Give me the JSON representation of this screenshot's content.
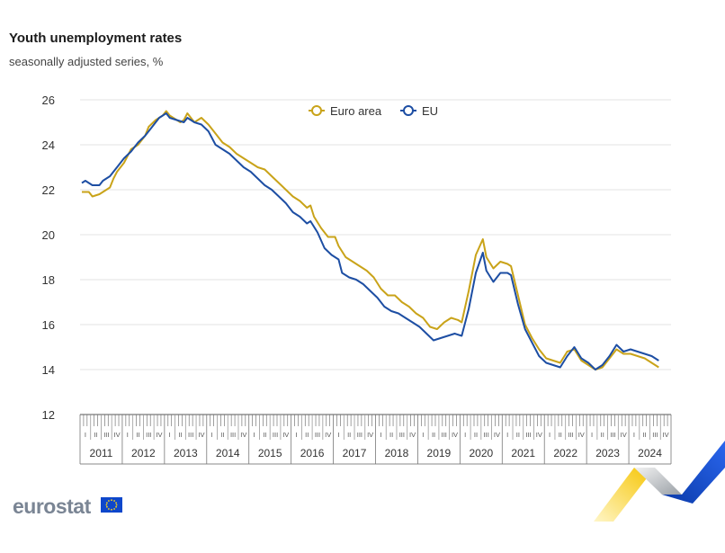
{
  "header": {
    "title": "Youth unemployment rates",
    "subtitle": "seasonally adjusted series, %"
  },
  "footer": {
    "logo_text": "eurostat"
  },
  "chart_data": {
    "type": "line",
    "ylim": [
      12,
      26
    ],
    "yticks": [
      12,
      14,
      16,
      18,
      20,
      22,
      24,
      26
    ],
    "grid": true,
    "legend_placement": "top-center",
    "quarter_labels": [
      "I",
      "II",
      "III",
      "IV"
    ],
    "years": [
      "2011",
      "2012",
      "2013",
      "2014",
      "2015",
      "2016",
      "2017",
      "2018",
      "2019",
      "2020",
      "2021",
      "2022",
      "2023",
      "2024"
    ],
    "x_start": "2011-01",
    "x_end": "2024-10",
    "series": [
      {
        "name": "Euro area",
        "color": "#c9a319",
        "points": [
          [
            "2011-01",
            21.9
          ],
          [
            "2011-03",
            21.9
          ],
          [
            "2011-04",
            21.7
          ],
          [
            "2011-06",
            21.8
          ],
          [
            "2011-07",
            21.9
          ],
          [
            "2011-09",
            22.1
          ],
          [
            "2011-10",
            22.5
          ],
          [
            "2011-11",
            22.8
          ],
          [
            "2012-01",
            23.2
          ],
          [
            "2012-03",
            23.8
          ],
          [
            "2012-05",
            24.0
          ],
          [
            "2012-07",
            24.4
          ],
          [
            "2012-08",
            24.8
          ],
          [
            "2012-10",
            25.1
          ],
          [
            "2012-12",
            25.3
          ],
          [
            "2013-01",
            25.5
          ],
          [
            "2013-02",
            25.3
          ],
          [
            "2013-03",
            25.2
          ],
          [
            "2013-05",
            25.0
          ],
          [
            "2013-06",
            25.1
          ],
          [
            "2013-07",
            25.4
          ],
          [
            "2013-09",
            25.0
          ],
          [
            "2013-11",
            25.2
          ],
          [
            "2014-01",
            24.9
          ],
          [
            "2014-03",
            24.5
          ],
          [
            "2014-05",
            24.1
          ],
          [
            "2014-07",
            23.9
          ],
          [
            "2014-09",
            23.6
          ],
          [
            "2014-11",
            23.4
          ],
          [
            "2015-01",
            23.2
          ],
          [
            "2015-03",
            23.0
          ],
          [
            "2015-05",
            22.9
          ],
          [
            "2015-07",
            22.6
          ],
          [
            "2015-09",
            22.3
          ],
          [
            "2015-11",
            22.0
          ],
          [
            "2016-01",
            21.7
          ],
          [
            "2016-03",
            21.5
          ],
          [
            "2016-05",
            21.2
          ],
          [
            "2016-06",
            21.3
          ],
          [
            "2016-07",
            20.8
          ],
          [
            "2016-09",
            20.3
          ],
          [
            "2016-11",
            19.9
          ],
          [
            "2017-01",
            19.9
          ],
          [
            "2017-02",
            19.5
          ],
          [
            "2017-04",
            19.0
          ],
          [
            "2017-06",
            18.8
          ],
          [
            "2017-08",
            18.6
          ],
          [
            "2017-10",
            18.4
          ],
          [
            "2017-12",
            18.1
          ],
          [
            "2018-02",
            17.6
          ],
          [
            "2018-04",
            17.3
          ],
          [
            "2018-06",
            17.3
          ],
          [
            "2018-08",
            17.0
          ],
          [
            "2018-10",
            16.8
          ],
          [
            "2018-12",
            16.5
          ],
          [
            "2019-02",
            16.3
          ],
          [
            "2019-04",
            15.9
          ],
          [
            "2019-06",
            15.8
          ],
          [
            "2019-08",
            16.1
          ],
          [
            "2019-10",
            16.3
          ],
          [
            "2019-12",
            16.2
          ],
          [
            "2020-01",
            16.1
          ],
          [
            "2020-03",
            17.5
          ],
          [
            "2020-05",
            19.1
          ],
          [
            "2020-07",
            19.8
          ],
          [
            "2020-08",
            19.0
          ],
          [
            "2020-10",
            18.5
          ],
          [
            "2020-12",
            18.8
          ],
          [
            "2021-02",
            18.7
          ],
          [
            "2021-03",
            18.6
          ],
          [
            "2021-05",
            17.3
          ],
          [
            "2021-07",
            16.0
          ],
          [
            "2021-09",
            15.4
          ],
          [
            "2021-11",
            14.9
          ],
          [
            "2022-01",
            14.5
          ],
          [
            "2022-03",
            14.4
          ],
          [
            "2022-05",
            14.3
          ],
          [
            "2022-07",
            14.8
          ],
          [
            "2022-09",
            14.9
          ],
          [
            "2022-11",
            14.4
          ],
          [
            "2023-01",
            14.2
          ],
          [
            "2023-03",
            14.0
          ],
          [
            "2023-05",
            14.1
          ],
          [
            "2023-07",
            14.5
          ],
          [
            "2023-09",
            14.9
          ],
          [
            "2023-11",
            14.7
          ],
          [
            "2024-01",
            14.7
          ],
          [
            "2024-03",
            14.6
          ],
          [
            "2024-05",
            14.5
          ],
          [
            "2024-07",
            14.3
          ],
          [
            "2024-09",
            14.1
          ]
        ]
      },
      {
        "name": "EU",
        "color": "#1d4ea3",
        "points": [
          [
            "2011-01",
            22.3
          ],
          [
            "2011-02",
            22.4
          ],
          [
            "2011-04",
            22.2
          ],
          [
            "2011-06",
            22.2
          ],
          [
            "2011-07",
            22.4
          ],
          [
            "2011-09",
            22.6
          ],
          [
            "2011-11",
            23.0
          ],
          [
            "2012-01",
            23.4
          ],
          [
            "2012-03",
            23.7
          ],
          [
            "2012-05",
            24.1
          ],
          [
            "2012-07",
            24.4
          ],
          [
            "2012-09",
            24.8
          ],
          [
            "2012-11",
            25.2
          ],
          [
            "2013-01",
            25.4
          ],
          [
            "2013-02",
            25.2
          ],
          [
            "2013-04",
            25.1
          ],
          [
            "2013-06",
            25.0
          ],
          [
            "2013-07",
            25.2
          ],
          [
            "2013-09",
            25.0
          ],
          [
            "2013-11",
            24.9
          ],
          [
            "2014-01",
            24.6
          ],
          [
            "2014-03",
            24.0
          ],
          [
            "2014-05",
            23.8
          ],
          [
            "2014-07",
            23.6
          ],
          [
            "2014-09",
            23.3
          ],
          [
            "2014-11",
            23.0
          ],
          [
            "2015-01",
            22.8
          ],
          [
            "2015-03",
            22.5
          ],
          [
            "2015-05",
            22.2
          ],
          [
            "2015-07",
            22.0
          ],
          [
            "2015-09",
            21.7
          ],
          [
            "2015-11",
            21.4
          ],
          [
            "2016-01",
            21.0
          ],
          [
            "2016-03",
            20.8
          ],
          [
            "2016-05",
            20.5
          ],
          [
            "2016-06",
            20.6
          ],
          [
            "2016-08",
            20.1
          ],
          [
            "2016-10",
            19.4
          ],
          [
            "2016-12",
            19.1
          ],
          [
            "2017-02",
            18.9
          ],
          [
            "2017-03",
            18.3
          ],
          [
            "2017-05",
            18.1
          ],
          [
            "2017-07",
            18.0
          ],
          [
            "2017-09",
            17.8
          ],
          [
            "2017-11",
            17.5
          ],
          [
            "2018-01",
            17.2
          ],
          [
            "2018-03",
            16.8
          ],
          [
            "2018-05",
            16.6
          ],
          [
            "2018-07",
            16.5
          ],
          [
            "2018-09",
            16.3
          ],
          [
            "2018-11",
            16.1
          ],
          [
            "2019-01",
            15.9
          ],
          [
            "2019-03",
            15.6
          ],
          [
            "2019-05",
            15.3
          ],
          [
            "2019-07",
            15.4
          ],
          [
            "2019-09",
            15.5
          ],
          [
            "2019-11",
            15.6
          ],
          [
            "2020-01",
            15.5
          ],
          [
            "2020-03",
            16.7
          ],
          [
            "2020-05",
            18.3
          ],
          [
            "2020-07",
            19.2
          ],
          [
            "2020-08",
            18.4
          ],
          [
            "2020-10",
            17.9
          ],
          [
            "2020-12",
            18.3
          ],
          [
            "2021-02",
            18.3
          ],
          [
            "2021-03",
            18.2
          ],
          [
            "2021-05",
            16.9
          ],
          [
            "2021-07",
            15.8
          ],
          [
            "2021-09",
            15.2
          ],
          [
            "2021-11",
            14.6
          ],
          [
            "2022-01",
            14.3
          ],
          [
            "2022-03",
            14.2
          ],
          [
            "2022-05",
            14.1
          ],
          [
            "2022-07",
            14.6
          ],
          [
            "2022-09",
            15.0
          ],
          [
            "2022-11",
            14.5
          ],
          [
            "2023-01",
            14.3
          ],
          [
            "2023-03",
            14.0
          ],
          [
            "2023-05",
            14.2
          ],
          [
            "2023-07",
            14.6
          ],
          [
            "2023-09",
            15.1
          ],
          [
            "2023-11",
            14.8
          ],
          [
            "2024-01",
            14.9
          ],
          [
            "2024-03",
            14.8
          ],
          [
            "2024-05",
            14.7
          ],
          [
            "2024-07",
            14.6
          ],
          [
            "2024-09",
            14.4
          ]
        ]
      }
    ]
  }
}
